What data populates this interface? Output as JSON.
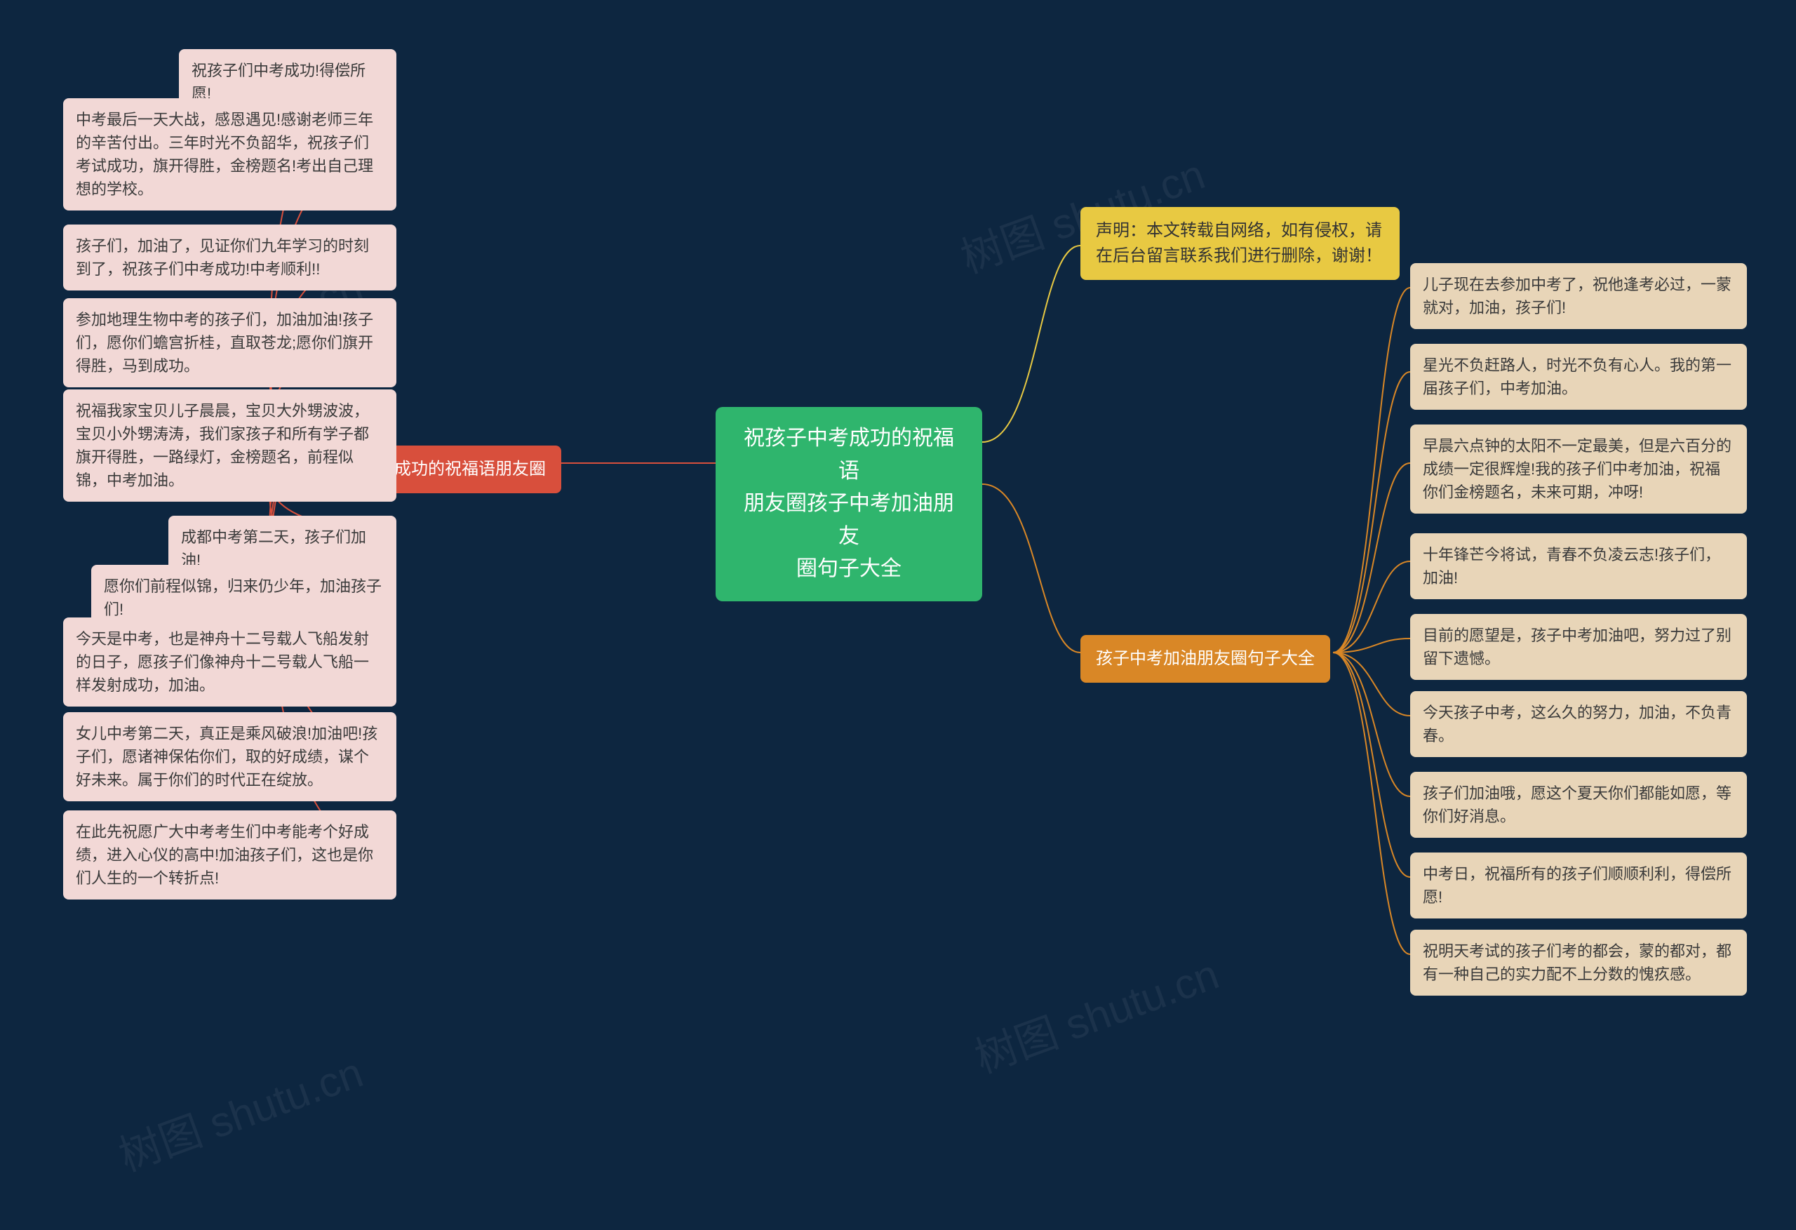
{
  "background_color": "#0d2640",
  "watermark_text": "树图 shutu.cn",
  "watermark_color": "rgba(255,255,255,0.06)",
  "center": {
    "text": "祝孩子中考成功的祝福语\n朋友圈孩子中考加油朋友\n圈句子大全",
    "bg": "#2fb56d",
    "fg": "#ffffff"
  },
  "left_branch": {
    "label": "祝孩子中考成功的祝福语朋友圈",
    "bg": "#d84f3c",
    "fg": "#ffffff",
    "leaf_bg": "#f2d8d6",
    "leaf_fg": "#3a3a3a",
    "leaves": [
      "祝孩子们中考成功!得偿所愿!",
      "中考最后一天大战，感恩遇见!感谢老师三年的辛苦付出。三年时光不负韶华，祝孩子们考试成功，旗开得胜，金榜题名!考出自己理想的学校。",
      "孩子们，加油了，见证你们九年学习的时刻到了，祝孩子们中考成功!中考顺利!!",
      "参加地理生物中考的孩子们，加油加油!孩子们，愿你们蟾宫折桂，直取苍龙;愿你们旗开得胜，马到成功。",
      "祝福我家宝贝儿子晨晨，宝贝大外甥波波，宝贝小外甥涛涛，我们家孩子和所有学子都旗开得胜，一路绿灯，金榜题名，前程似锦，中考加油。",
      "成都中考第二天，孩子们加油!",
      "愿你们前程似锦，归来仍少年，加油孩子们!",
      "今天是中考，也是神舟十二号载人飞船发射的日子，愿孩子们像神舟十二号载人飞船一样发射成功，加油。",
      "女儿中考第二天，真正是乘风破浪!加油吧!孩子们，愿诸神保佑你们，取的好成绩，谋个好未来。属于你们的时代正在绽放。",
      "在此先祝愿广大中考考生们中考能考个好成绩，进入心仪的高中!加油孩子们，这也是你们人生的一个转折点!"
    ]
  },
  "right_branches": [
    {
      "type": "yellow",
      "label": "声明：本文转载自网络，如有侵权，请在后台留言联系我们进行删除，谢谢！",
      "bg": "#e8c942",
      "fg": "#333333"
    },
    {
      "type": "orange",
      "label": "孩子中考加油朋友圈句子大全",
      "bg": "#d98726",
      "fg": "#ffffff",
      "leaf_bg": "#e8d5b8",
      "leaf_fg": "#3a3a3a",
      "leaves": [
        "儿子现在去参加中考了，祝他逢考必过，一蒙就对，加油，孩子们!",
        "星光不负赶路人，时光不负有心人。我的第一届孩子们，中考加油。",
        "早晨六点钟的太阳不一定最美，但是六百分的成绩一定很辉煌!我的孩子们中考加油，祝福你们金榜题名，未来可期，冲呀!",
        "十年锋芒今将试，青春不负凌云志!孩子们，加油!",
        "目前的愿望是，孩子中考加油吧，努力过了别留下遗憾。",
        "今天孩子中考，这么久的努力，加油，不负青春。",
        "孩子们加油哦，愿这个夏天你们都能如愿，等你们好消息。",
        "中考日，祝福所有的孩子们顺顺利利，得偿所愿!",
        "祝明天考试的孩子们考的都会，蒙的都对，都有一种自己的实力配不上分数的愧疚感。"
      ]
    }
  ],
  "connector_color_left": "#d84f3c",
  "connector_color_yellow": "#e8c942",
  "connector_color_orange": "#d98726",
  "connector_width": 2
}
